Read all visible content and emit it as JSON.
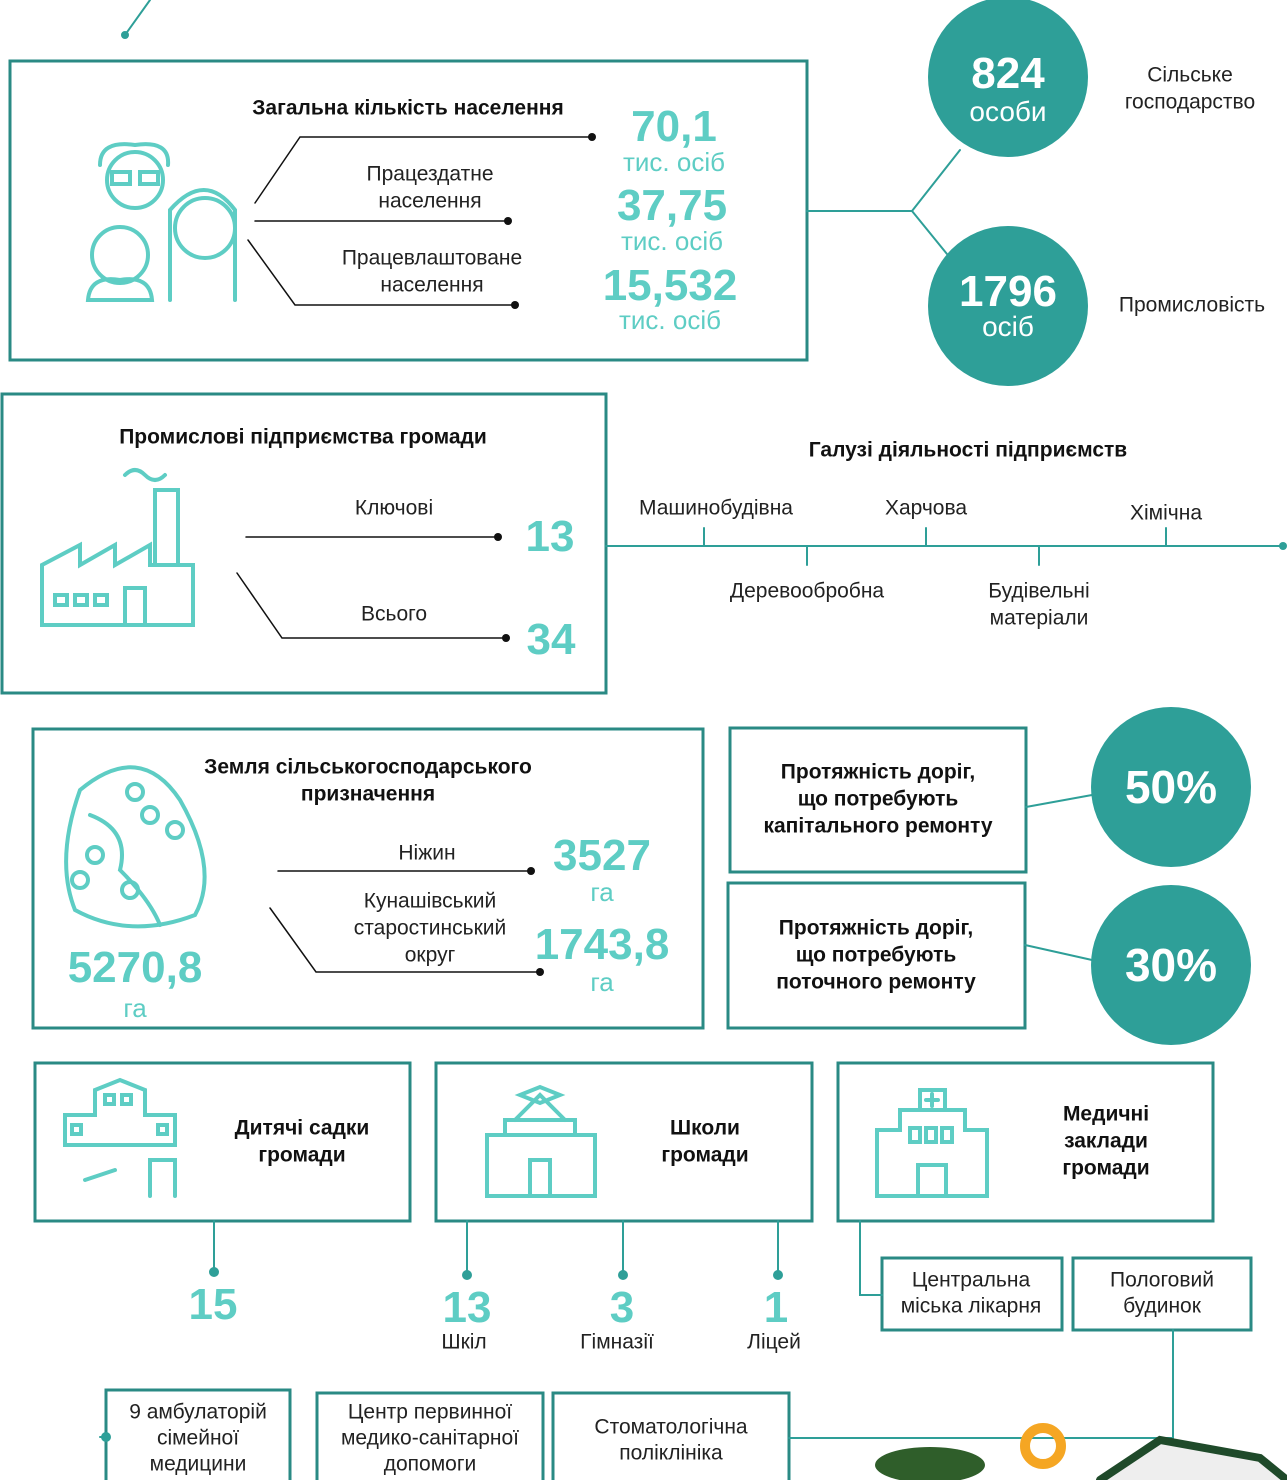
{
  "population": {
    "title": "Загальна кількість населення",
    "total": "70,1",
    "total_unit": "тис. осіб",
    "working_label": [
      "Працездатне",
      "населення"
    ],
    "working": "37,75",
    "working_unit": "тис. осіб",
    "employed_label": [
      "Працевлаштоване",
      "населення"
    ],
    "employed": "15,532",
    "employed_unit": "тис. осіб"
  },
  "employment": [
    {
      "value": "824",
      "unit": "особи",
      "label": [
        "Сільське",
        "господарство"
      ]
    },
    {
      "value": "1796",
      "unit": "осіб",
      "label": [
        "Промисловість"
      ]
    }
  ],
  "industry": {
    "title": "Промислові підприємства громади",
    "key_label": "Ключові",
    "key": "13",
    "total_label": "Всього",
    "total": "34"
  },
  "branches": {
    "title": "Галузі діяльності підприємств",
    "items": [
      [
        "Машинобудівна"
      ],
      [
        "Деревообробна"
      ],
      [
        "Харчова"
      ],
      [
        "Будівельні",
        "матеріали"
      ],
      [
        "Хімічна"
      ]
    ]
  },
  "land": {
    "title": [
      "Земля сільськогосподарського",
      "призначення"
    ],
    "total": "5270,8",
    "total_unit": "га",
    "parts": [
      {
        "label": [
          "Ніжин"
        ],
        "value": "3527",
        "unit": "га"
      },
      {
        "label": [
          "Кунашівський",
          "старостинський",
          "округ"
        ],
        "value": "1743,8",
        "unit": "га"
      }
    ]
  },
  "roads": [
    {
      "label": [
        "Протяжність доріг,",
        "що потребують",
        "капітального ремонту"
      ],
      "value": "50%"
    },
    {
      "label": [
        "Протяжність доріг,",
        "що потребують",
        "поточного ремонту"
      ],
      "value": "30%"
    }
  ],
  "kindergartens": {
    "title": [
      "Дитячі садки",
      "громади"
    ],
    "count": "15"
  },
  "schools": {
    "title": [
      "Школи",
      "громади"
    ],
    "items": [
      {
        "count": "13",
        "label": "Шкіл"
      },
      {
        "count": "3",
        "label": "Гімназії"
      },
      {
        "count": "1",
        "label": "Ліцей"
      }
    ]
  },
  "medical": {
    "title": [
      "Медичні",
      "заклади",
      "громади"
    ],
    "hospitals": [
      [
        "Центральна",
        "міська лікарня"
      ],
      [
        "Пологовий",
        "будинок"
      ]
    ],
    "others": [
      [
        "9 амбулаторій",
        "сімейної",
        "медицини"
      ],
      [
        "Центр первинної",
        "медико-санітарної",
        "допомоги"
      ],
      [
        "Стоматологічна",
        "поліклініка"
      ]
    ]
  }
}
